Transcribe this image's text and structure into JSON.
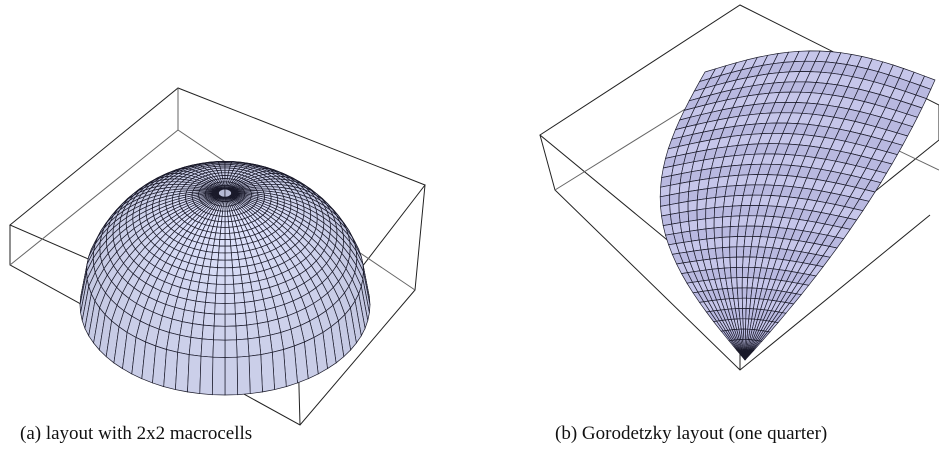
{
  "figures": [
    {
      "caption": "(a) layout with 2x2 macrocells"
    },
    {
      "caption": "(b) Gorodetzky layout (one quarter)"
    }
  ]
}
